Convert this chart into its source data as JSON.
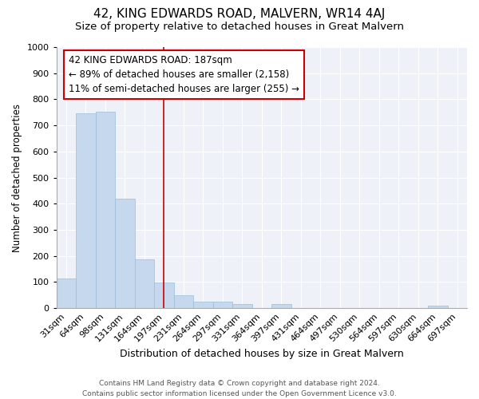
{
  "title": "42, KING EDWARDS ROAD, MALVERN, WR14 4AJ",
  "subtitle": "Size of property relative to detached houses in Great Malvern",
  "xlabel": "Distribution of detached houses by size in Great Malvern",
  "ylabel": "Number of detached properties",
  "categories": [
    "31sqm",
    "64sqm",
    "98sqm",
    "131sqm",
    "164sqm",
    "197sqm",
    "231sqm",
    "264sqm",
    "297sqm",
    "331sqm",
    "364sqm",
    "397sqm",
    "431sqm",
    "464sqm",
    "497sqm",
    "530sqm",
    "564sqm",
    "597sqm",
    "630sqm",
    "664sqm",
    "697sqm"
  ],
  "values": [
    115,
    745,
    752,
    418,
    188,
    97,
    50,
    25,
    25,
    17,
    0,
    15,
    0,
    0,
    0,
    0,
    0,
    0,
    0,
    10,
    0
  ],
  "bar_color": "#c5d8ee",
  "bar_edge_color": "#9bbcd8",
  "vline_color": "#cc0000",
  "vline_index": 5,
  "annotation_line1": "42 KING EDWARDS ROAD: 187sqm",
  "annotation_line2": "← 89% of detached houses are smaller (2,158)",
  "annotation_line3": "11% of semi-detached houses are larger (255) →",
  "annotation_box_color": "#cc0000",
  "ylim": [
    0,
    1000
  ],
  "yticks": [
    0,
    100,
    200,
    300,
    400,
    500,
    600,
    700,
    800,
    900,
    1000
  ],
  "bg_color": "#ffffff",
  "plot_bg_color": "#eef2f8",
  "grid_color": "#ffffff",
  "footer_line1": "Contains HM Land Registry data © Crown copyright and database right 2024.",
  "footer_line2": "Contains public sector information licensed under the Open Government Licence v3.0.",
  "title_fontsize": 11,
  "subtitle_fontsize": 9.5,
  "xlabel_fontsize": 9,
  "ylabel_fontsize": 8.5,
  "tick_fontsize": 8,
  "annot_fontsize": 8.5,
  "footer_fontsize": 6.5
}
